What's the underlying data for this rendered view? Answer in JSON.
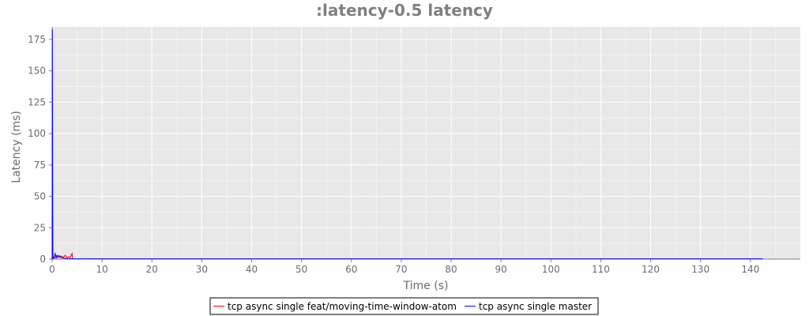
{
  "chart_data": {
    "type": "line",
    "title": ":latency-0.5 latency",
    "xlabel": "Time (s)",
    "ylabel": "Latency (ms)",
    "xlim": [
      0,
      150
    ],
    "ylim": [
      0,
      185
    ],
    "x_ticks": [
      0,
      10,
      20,
      30,
      40,
      50,
      60,
      70,
      80,
      90,
      100,
      110,
      120,
      130,
      140
    ],
    "y_ticks": [
      0,
      25,
      50,
      75,
      100,
      125,
      150,
      175
    ],
    "grid": true,
    "legend_position": "bottom",
    "series": [
      {
        "name": "tcp async single feat/moving-time-window-atom",
        "color": "#ff0000",
        "x": [
          0,
          0.2,
          0.5,
          0.8,
          1.0,
          1.3,
          1.6,
          2.0,
          2.3,
          2.6,
          3.0,
          3.3,
          3.6,
          4.0,
          4.1
        ],
        "y": [
          0,
          1.5,
          1.0,
          2.5,
          1.2,
          2.8,
          1.0,
          2.2,
          1.5,
          3.0,
          1.0,
          2.0,
          1.2,
          4.5,
          0.5
        ]
      },
      {
        "name": "tcp async single master",
        "color": "#0000ff",
        "x": [
          0,
          0.05,
          0.1,
          0.15,
          0.25,
          0.4,
          0.6,
          0.8,
          1.0,
          1.3,
          1.6,
          2.0,
          2.5,
          3.0,
          10,
          20,
          30,
          40,
          50,
          60,
          70,
          80,
          90,
          100,
          110,
          120,
          130,
          140,
          142.5
        ],
        "y": [
          0,
          183,
          60,
          1.5,
          0.5,
          2.0,
          4.5,
          1.0,
          3.0,
          1.8,
          2.6,
          1.0,
          0.6,
          0.3,
          0.2,
          0.2,
          0.2,
          0.2,
          0.2,
          0.2,
          0.2,
          0.2,
          0.2,
          0.2,
          0.2,
          0.2,
          0.2,
          0.2,
          0.2
        ]
      }
    ]
  }
}
